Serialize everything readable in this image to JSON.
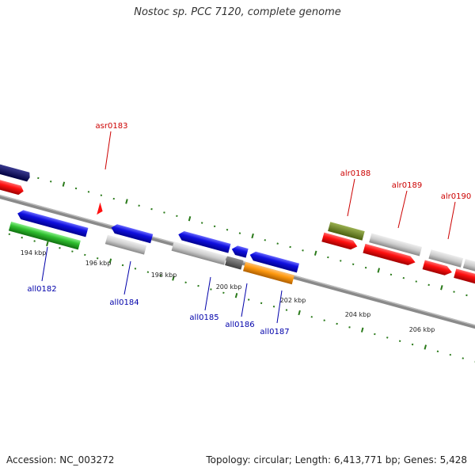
{
  "title": "Nostoc sp. PCC 7120, complete genome",
  "footer": {
    "accession": "Accession: NC_003272",
    "summary": "Topology: circular; Length: 6,413,771 bp; Genes: 5,428"
  },
  "colors": {
    "top_label": "#cc0000",
    "bottom_label": "#0000aa",
    "backbone": "#888888",
    "tick": "#2a7a1a"
  },
  "scale_ticks": [
    "194 kbp",
    "196 kbp",
    "198 kbp",
    "200 kbp",
    "202 kbp",
    "204 kbp",
    "206 kbp"
  ],
  "genes_forward": [
    "asr0183",
    "alr0188",
    "alr0189",
    "alr0190"
  ],
  "genes_reverse": [
    "all0182",
    "all0184",
    "all0185",
    "all0186",
    "all0187"
  ]
}
